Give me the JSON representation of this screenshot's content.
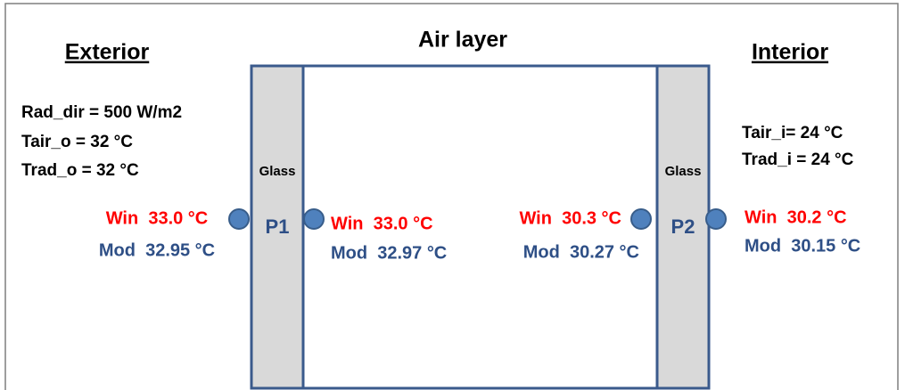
{
  "headings": {
    "exterior": "Exterior",
    "air_layer": "Air layer",
    "interior": "Interior"
  },
  "exterior_params": [
    "Rad_dir = 500 W/m2",
    "Tair_o = 32 °C",
    "Trad_o = 32 °C"
  ],
  "interior_params": [
    "Tair_i= 24 °C",
    "Trad_i = 24 °C"
  ],
  "glass_labels": [
    "Glass",
    "Glass"
  ],
  "panes": [
    "P1",
    "P2"
  ],
  "readings": [
    {
      "win": "Win  33.0 °C",
      "mod": "Mod  32.95 °C"
    },
    {
      "win": "Win  33.0 °C",
      "mod": "Mod  32.97 °C"
    },
    {
      "win": "Win  30.3 °C",
      "mod": "Mod  30.27 °C"
    },
    {
      "win": "Win  30.2 °C",
      "mod": "Mod  30.15 °C"
    }
  ]
}
